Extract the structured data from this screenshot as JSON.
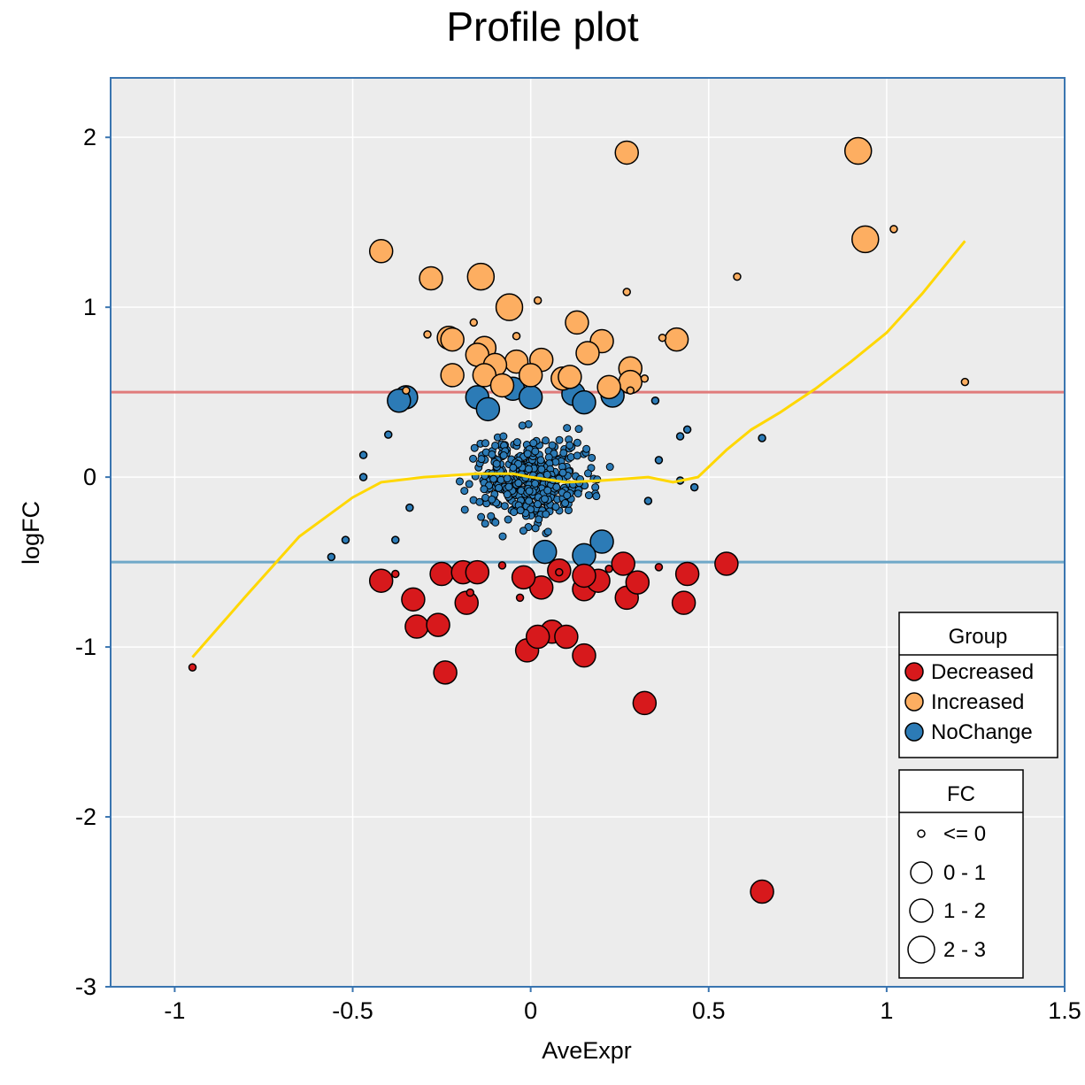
{
  "chart_data": {
    "type": "scatter",
    "title": "Profile plot",
    "xlabel": "AveExpr",
    "ylabel": "logFC",
    "xlim": [
      -1.18,
      1.5
    ],
    "ylim": [
      -3,
      2.35
    ],
    "x_ticks": [
      -1,
      -0.5,
      0,
      0.5,
      1,
      1.5
    ],
    "x_tick_labels": [
      "-1",
      "-0.5",
      "0",
      "0.5",
      "1",
      "1.5"
    ],
    "y_ticks": [
      -3,
      -2,
      -1,
      0,
      1,
      2
    ],
    "y_tick_labels": [
      "-3",
      "-2",
      "-1",
      "0",
      "1",
      "2"
    ],
    "grid": true,
    "background": "#ececec",
    "thresholds": [
      {
        "y": 0.5,
        "color": "#e07b7b"
      },
      {
        "y": -0.5,
        "color": "#6fa8c8"
      }
    ],
    "colors": {
      "Decreased": "#d7191c",
      "Increased": "#fdae61",
      "NoChange": "#2c7bb6",
      "trend": "#ffd700",
      "frame": "#3a75b0"
    },
    "legend_group": {
      "title": "Group",
      "placement": "bottom-right",
      "items": [
        {
          "label": "Decreased",
          "color": "#d7191c"
        },
        {
          "label": "Increased",
          "color": "#fdae61"
        },
        {
          "label": "NoChange",
          "color": "#2c7bb6"
        }
      ]
    },
    "legend_fc": {
      "title": "FC",
      "placement": "bottom-right",
      "items": [
        {
          "label": "<= 0",
          "size_class": 0
        },
        {
          "label": "0 - 1",
          "size_class": 1
        },
        {
          "label": "1 - 2",
          "size_class": 2
        },
        {
          "label": "2 - 3",
          "size_class": 3
        }
      ]
    },
    "trend_line": {
      "x": [
        -0.95,
        -0.8,
        -0.65,
        -0.5,
        -0.42,
        -0.3,
        -0.15,
        -0.05,
        0.0,
        0.1,
        0.2,
        0.33,
        0.4,
        0.47,
        0.55,
        0.62,
        0.7,
        0.8,
        0.9,
        1.0,
        1.1,
        1.22
      ],
      "y": [
        -1.06,
        -0.7,
        -0.35,
        -0.12,
        -0.03,
        0.0,
        0.02,
        0.02,
        0.0,
        -0.03,
        -0.02,
        0.0,
        -0.03,
        0.0,
        0.16,
        0.28,
        0.38,
        0.52,
        0.68,
        0.85,
        1.08,
        1.39
      ]
    },
    "series": [
      {
        "name": "Increased",
        "points": [
          {
            "x": 0.27,
            "y": 1.91,
            "fc": 2
          },
          {
            "x": 0.92,
            "y": 1.92,
            "fc": 3
          },
          {
            "x": 0.94,
            "y": 1.4,
            "fc": 3
          },
          {
            "x": -0.42,
            "y": 1.33,
            "fc": 2
          },
          {
            "x": -0.28,
            "y": 1.17,
            "fc": 2
          },
          {
            "x": -0.14,
            "y": 1.18,
            "fc": 3
          },
          {
            "x": -0.06,
            "y": 1.0,
            "fc": 3
          },
          {
            "x": 0.13,
            "y": 0.91,
            "fc": 2
          },
          {
            "x": 0.41,
            "y": 0.81,
            "fc": 2
          },
          {
            "x": -0.23,
            "y": 0.82,
            "fc": 2
          },
          {
            "x": 0.2,
            "y": 0.8,
            "fc": 2
          },
          {
            "x": -0.13,
            "y": 0.76,
            "fc": 2
          },
          {
            "x": -0.22,
            "y": 0.81,
            "fc": 2
          },
          {
            "x": 0.16,
            "y": 0.73,
            "fc": 2
          },
          {
            "x": -0.15,
            "y": 0.72,
            "fc": 2
          },
          {
            "x": -0.04,
            "y": 0.68,
            "fc": 2
          },
          {
            "x": 0.03,
            "y": 0.69,
            "fc": 2
          },
          {
            "x": -0.1,
            "y": 0.66,
            "fc": 2
          },
          {
            "x": 0.28,
            "y": 0.64,
            "fc": 2
          },
          {
            "x": -0.13,
            "y": 0.6,
            "fc": 2
          },
          {
            "x": 0.0,
            "y": 0.6,
            "fc": 2
          },
          {
            "x": 0.09,
            "y": 0.58,
            "fc": 2
          },
          {
            "x": 0.28,
            "y": 0.56,
            "fc": 2
          },
          {
            "x": -0.22,
            "y": 0.6,
            "fc": 2
          },
          {
            "x": 0.11,
            "y": 0.59,
            "fc": 2
          },
          {
            "x": 0.22,
            "y": 0.53,
            "fc": 2
          },
          {
            "x": -0.08,
            "y": 0.54,
            "fc": 2
          },
          {
            "x": 1.22,
            "y": 0.56,
            "fc": 0
          },
          {
            "x": 1.02,
            "y": 1.46,
            "fc": 0
          },
          {
            "x": 0.58,
            "y": 1.18,
            "fc": 0
          },
          {
            "x": 0.27,
            "y": 1.09,
            "fc": 0
          },
          {
            "x": 0.02,
            "y": 1.04,
            "fc": 0
          },
          {
            "x": -0.16,
            "y": 0.91,
            "fc": 0
          },
          {
            "x": -0.29,
            "y": 0.84,
            "fc": 0
          },
          {
            "x": -0.04,
            "y": 0.83,
            "fc": 0
          },
          {
            "x": 0.37,
            "y": 0.82,
            "fc": 0
          },
          {
            "x": 0.32,
            "y": 0.58,
            "fc": 0
          },
          {
            "x": -0.35,
            "y": 0.51,
            "fc": 0
          },
          {
            "x": 0.28,
            "y": 0.51,
            "fc": 0
          }
        ]
      },
      {
        "name": "Decreased",
        "points": [
          {
            "x": 0.65,
            "y": -2.44,
            "fc": 2
          },
          {
            "x": 0.32,
            "y": -1.33,
            "fc": 2
          },
          {
            "x": -0.24,
            "y": -1.15,
            "fc": 2
          },
          {
            "x": -0.01,
            "y": -1.02,
            "fc": 2
          },
          {
            "x": 0.15,
            "y": -1.05,
            "fc": 2
          },
          {
            "x": 0.06,
            "y": -0.91,
            "fc": 2
          },
          {
            "x": 0.02,
            "y": -0.94,
            "fc": 2
          },
          {
            "x": 0.1,
            "y": -0.94,
            "fc": 2
          },
          {
            "x": -0.32,
            "y": -0.88,
            "fc": 2
          },
          {
            "x": -0.26,
            "y": -0.87,
            "fc": 2
          },
          {
            "x": 0.43,
            "y": -0.74,
            "fc": 2
          },
          {
            "x": -0.18,
            "y": -0.74,
            "fc": 2
          },
          {
            "x": -0.33,
            "y": -0.72,
            "fc": 2
          },
          {
            "x": 0.27,
            "y": -0.71,
            "fc": 2
          },
          {
            "x": -0.42,
            "y": -0.61,
            "fc": 2
          },
          {
            "x": 0.15,
            "y": -0.66,
            "fc": 2
          },
          {
            "x": 0.03,
            "y": -0.65,
            "fc": 2
          },
          {
            "x": 0.3,
            "y": -0.62,
            "fc": 2
          },
          {
            "x": 0.19,
            "y": -0.61,
            "fc": 2
          },
          {
            "x": 0.44,
            "y": -0.57,
            "fc": 2
          },
          {
            "x": -0.25,
            "y": -0.57,
            "fc": 2
          },
          {
            "x": -0.19,
            "y": -0.56,
            "fc": 2
          },
          {
            "x": -0.15,
            "y": -0.56,
            "fc": 2
          },
          {
            "x": -0.02,
            "y": -0.59,
            "fc": 2
          },
          {
            "x": 0.15,
            "y": -0.58,
            "fc": 2
          },
          {
            "x": 0.26,
            "y": -0.51,
            "fc": 2
          },
          {
            "x": 0.55,
            "y": -0.51,
            "fc": 2
          },
          {
            "x": 0.08,
            "y": -0.55,
            "fc": 2
          },
          {
            "x": -0.95,
            "y": -1.12,
            "fc": 0
          },
          {
            "x": -0.03,
            "y": -0.71,
            "fc": 0
          },
          {
            "x": -0.17,
            "y": -0.68,
            "fc": 0
          },
          {
            "x": 0.08,
            "y": -0.56,
            "fc": 0
          },
          {
            "x": -0.38,
            "y": -0.57,
            "fc": 0
          },
          {
            "x": 0.36,
            "y": -0.53,
            "fc": 0
          },
          {
            "x": -0.08,
            "y": -0.52,
            "fc": 0
          },
          {
            "x": 0.22,
            "y": -0.54,
            "fc": 0
          }
        ]
      },
      {
        "name": "NoChange",
        "points": [
          {
            "x": -0.35,
            "y": 0.47,
            "fc": 2
          },
          {
            "x": -0.37,
            "y": 0.45,
            "fc": 2
          },
          {
            "x": -0.05,
            "y": 0.52,
            "fc": 2
          },
          {
            "x": -0.15,
            "y": 0.47,
            "fc": 2
          },
          {
            "x": 0.0,
            "y": 0.47,
            "fc": 2
          },
          {
            "x": 0.12,
            "y": 0.49,
            "fc": 2
          },
          {
            "x": 0.23,
            "y": 0.48,
            "fc": 2
          },
          {
            "x": 0.15,
            "y": 0.44,
            "fc": 2
          },
          {
            "x": -0.12,
            "y": 0.4,
            "fc": 2
          },
          {
            "x": 0.2,
            "y": -0.38,
            "fc": 2
          },
          {
            "x": 0.15,
            "y": -0.46,
            "fc": 2
          },
          {
            "x": 0.04,
            "y": -0.44,
            "fc": 2
          },
          {
            "x": 0.65,
            "y": 0.23,
            "fc": 0
          },
          {
            "x": -0.56,
            "y": -0.47,
            "fc": 0
          },
          {
            "x": -0.52,
            "y": -0.37,
            "fc": 0
          },
          {
            "x": -0.47,
            "y": 0.13,
            "fc": 0
          },
          {
            "x": -0.47,
            "y": 0.0,
            "fc": 0
          },
          {
            "x": 0.46,
            "y": -0.06,
            "fc": 0
          },
          {
            "x": 0.44,
            "y": 0.28,
            "fc": 0
          },
          {
            "x": 0.42,
            "y": 0.24,
            "fc": 0
          },
          {
            "x": 0.35,
            "y": 0.45,
            "fc": 0
          },
          {
            "x": 0.42,
            "y": -0.02,
            "fc": 0
          },
          {
            "x": -0.38,
            "y": -0.37,
            "fc": 0
          },
          {
            "x": -0.4,
            "y": 0.25,
            "fc": 0
          },
          {
            "x": 0.33,
            "y": -0.14,
            "fc": 0
          },
          {
            "x": 0.36,
            "y": 0.1,
            "fc": 0
          },
          {
            "x": -0.34,
            "y": -0.18,
            "fc": 0
          }
        ]
      }
    ]
  }
}
